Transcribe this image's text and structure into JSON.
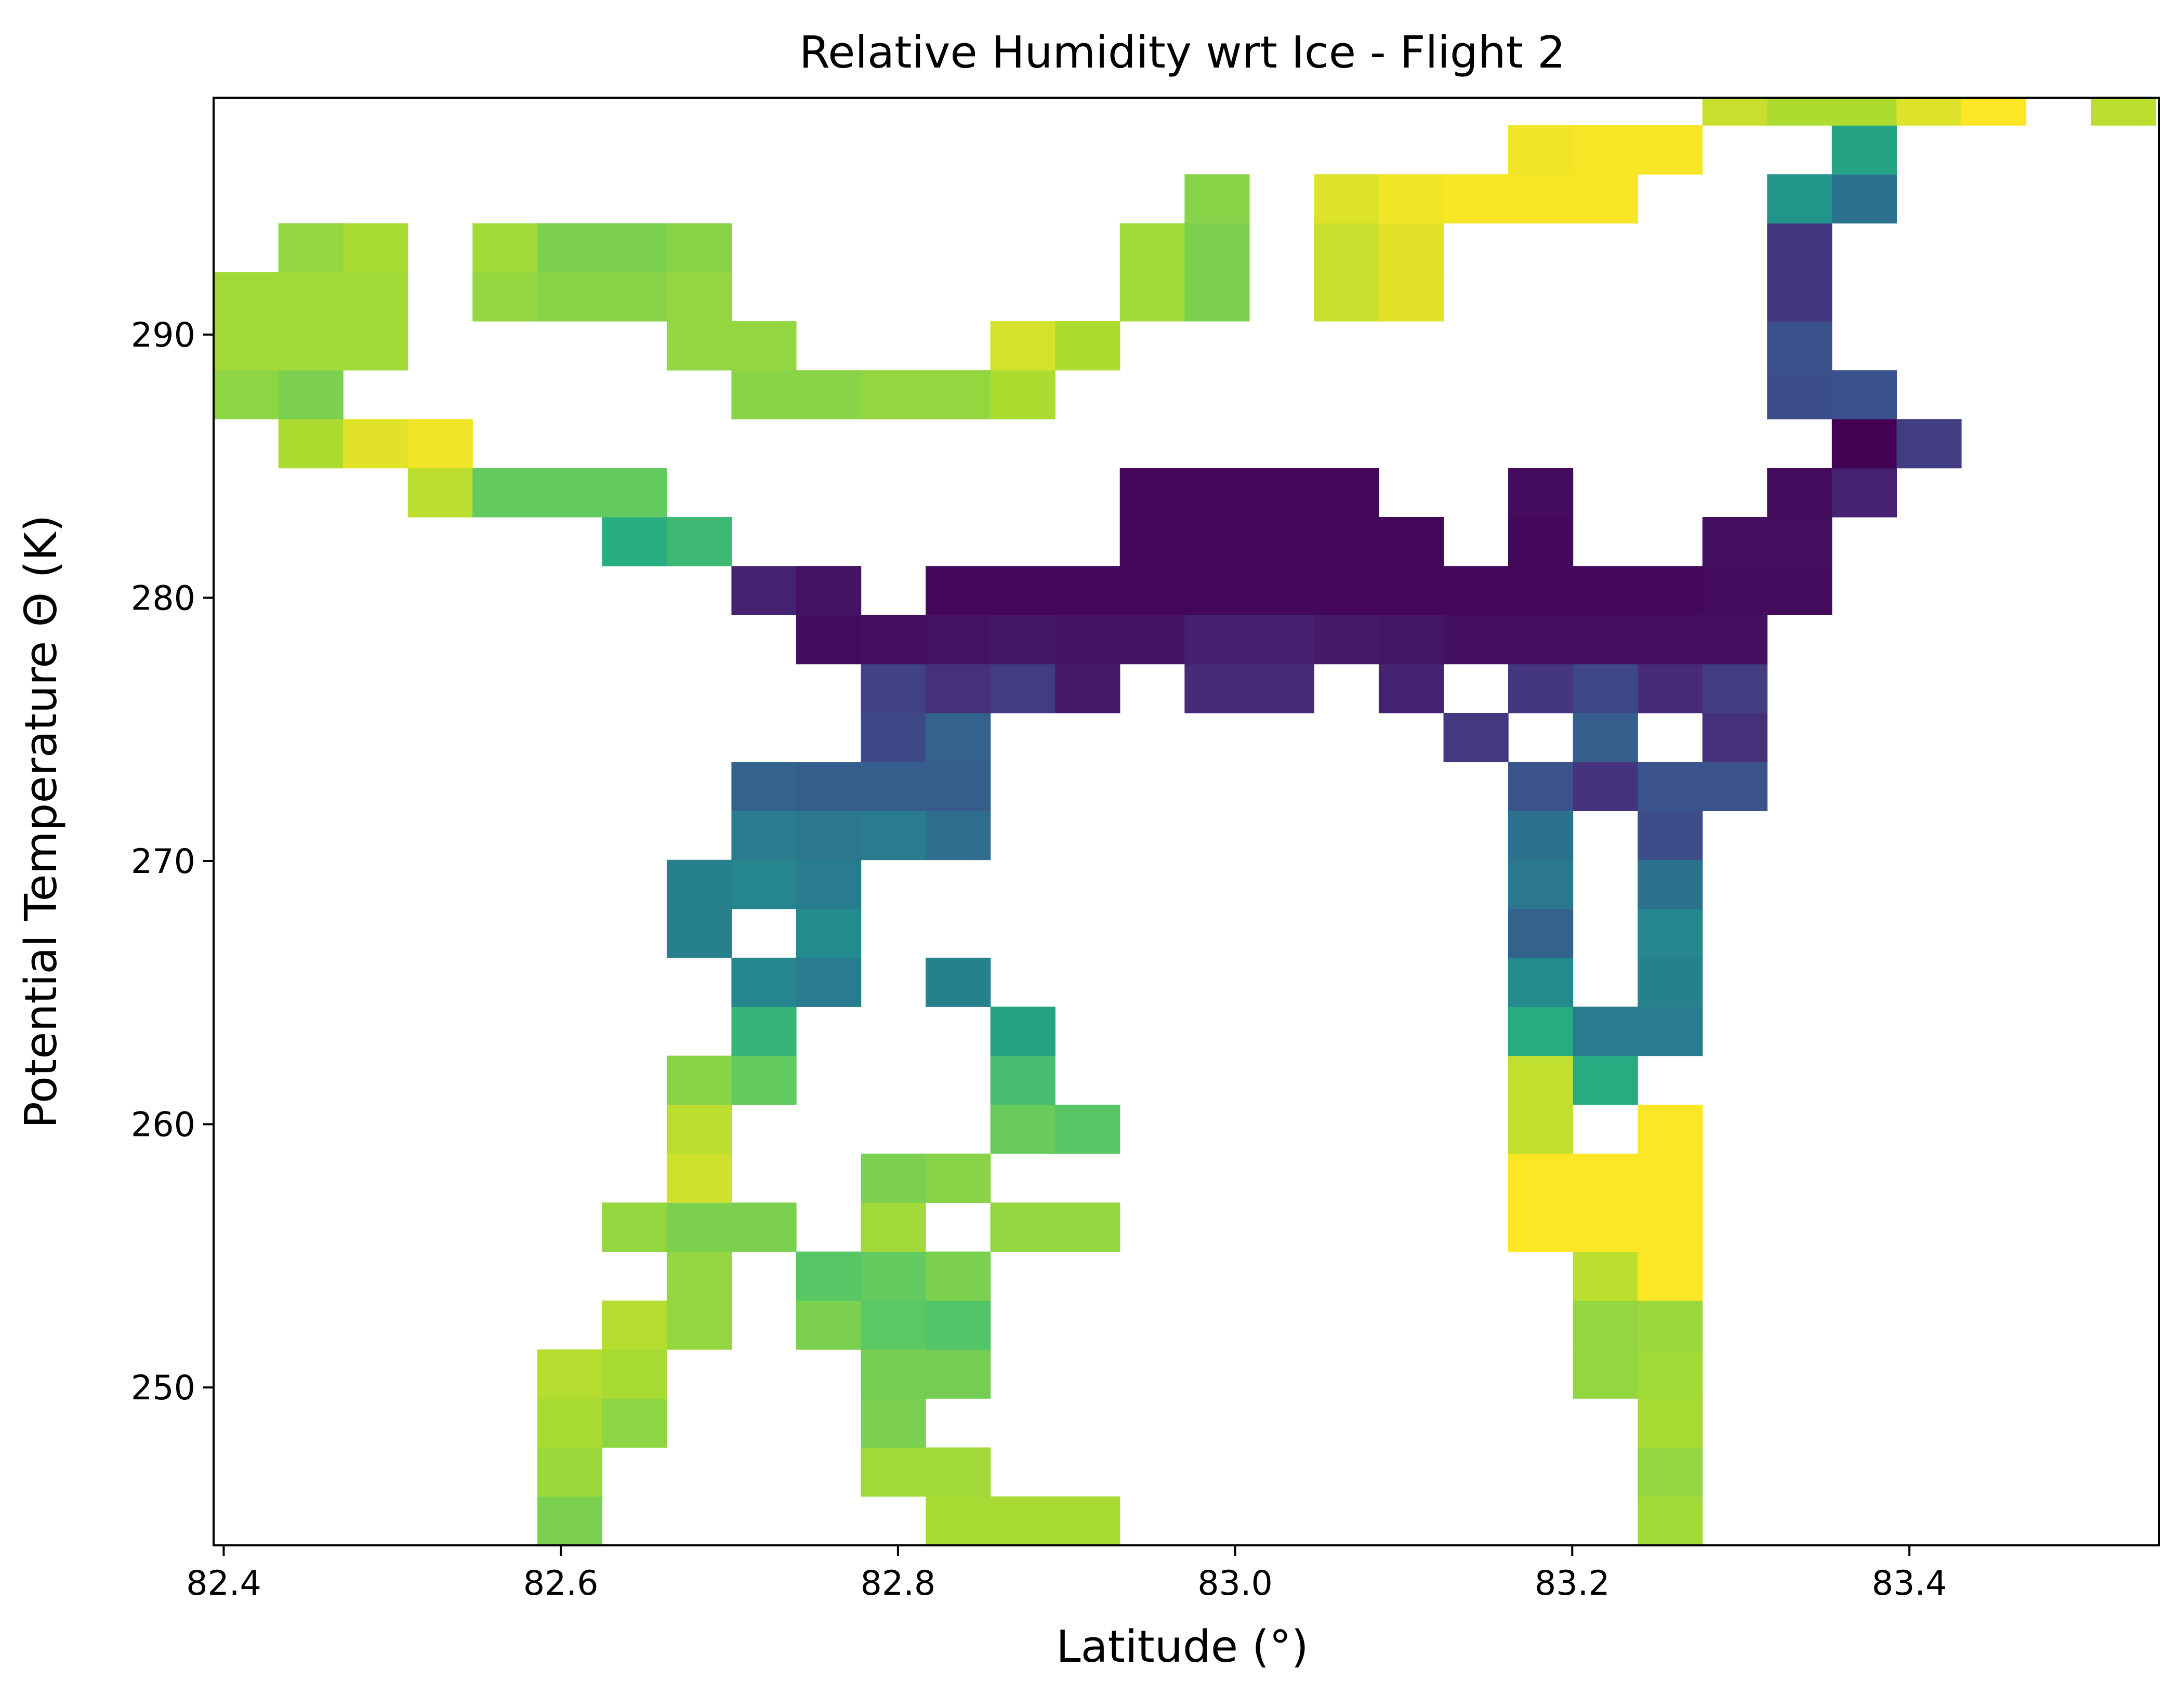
{
  "chart_data": {
    "type": "heatmap",
    "title": "Relative Humidity wrt Ice - Flight 2",
    "xlabel": "Latitude (°)",
    "ylabel": "Potential Temperature Θ (K)",
    "xlim": [
      82.394,
      83.548
    ],
    "ylim": [
      244,
      299
    ],
    "x_ticks": [
      82.4,
      82.6,
      82.8,
      83.0,
      83.2,
      83.4
    ],
    "x_tick_labels": [
      "82.4",
      "82.6",
      "82.8",
      "83.0",
      "83.2",
      "83.4"
    ],
    "y_ticks": [
      250,
      260,
      270,
      280,
      290
    ],
    "y_tick_labels": [
      "250",
      "260",
      "270",
      "280",
      "290"
    ],
    "colormap": "viridis",
    "grid": false,
    "colorbar": false,
    "lat_bins": {
      "start": 82.394,
      "step": 0.0384
    },
    "theta_bins": {
      "start": 244,
      "step": 1.8604
    },
    "values_note": "",
    "cells": [
      [
        5,
        0,
        0.8
      ],
      [
        11,
        0,
        0.87
      ],
      [
        12,
        0,
        0.87
      ],
      [
        13,
        0,
        0.87
      ],
      [
        22,
        0,
        0.86
      ],
      [
        5,
        1,
        0.85
      ],
      [
        10,
        1,
        0.86
      ],
      [
        11,
        1,
        0.86
      ],
      [
        22,
        1,
        0.84
      ],
      [
        5,
        2,
        0.87
      ],
      [
        6,
        2,
        0.83
      ],
      [
        10,
        2,
        0.8
      ],
      [
        22,
        2,
        0.87
      ],
      [
        5,
        3,
        0.89
      ],
      [
        6,
        3,
        0.87
      ],
      [
        10,
        3,
        0.79
      ],
      [
        11,
        3,
        0.79
      ],
      [
        21,
        3,
        0.84
      ],
      [
        22,
        3,
        0.86
      ],
      [
        6,
        4,
        0.89
      ],
      [
        7,
        4,
        0.84
      ],
      [
        9,
        4,
        0.8
      ],
      [
        10,
        4,
        0.75
      ],
      [
        11,
        4,
        0.73
      ],
      [
        21,
        4,
        0.84
      ],
      [
        22,
        4,
        0.85
      ],
      [
        7,
        5,
        0.84
      ],
      [
        9,
        5,
        0.74
      ],
      [
        10,
        5,
        0.76
      ],
      [
        11,
        5,
        0.8
      ],
      [
        21,
        5,
        0.9
      ],
      [
        22,
        5,
        1.0
      ],
      [
        6,
        6,
        0.84
      ],
      [
        7,
        6,
        0.8
      ],
      [
        8,
        6,
        0.8
      ],
      [
        10,
        6,
        0.86
      ],
      [
        12,
        6,
        0.84
      ],
      [
        13,
        6,
        0.84
      ],
      [
        20,
        6,
        1.0
      ],
      [
        21,
        6,
        1.0
      ],
      [
        22,
        6,
        1.0
      ],
      [
        7,
        7,
        0.93
      ],
      [
        10,
        7,
        0.8
      ],
      [
        11,
        7,
        0.82
      ],
      [
        20,
        7,
        1.0
      ],
      [
        21,
        7,
        1.0
      ],
      [
        22,
        7,
        1.0
      ],
      [
        7,
        8,
        0.9
      ],
      [
        12,
        8,
        0.77
      ],
      [
        13,
        8,
        0.74
      ],
      [
        20,
        8,
        0.91
      ],
      [
        22,
        8,
        1.0
      ],
      [
        7,
        9,
        0.82
      ],
      [
        8,
        9,
        0.76
      ],
      [
        12,
        9,
        0.7
      ],
      [
        20,
        9,
        0.91
      ],
      [
        21,
        9,
        0.62
      ],
      [
        8,
        10,
        0.66
      ],
      [
        12,
        10,
        0.58
      ],
      [
        20,
        10,
        0.62
      ],
      [
        21,
        10,
        0.42
      ],
      [
        22,
        10,
        0.42
      ],
      [
        8,
        11,
        0.46
      ],
      [
        9,
        11,
        0.42
      ],
      [
        11,
        11,
        0.44
      ],
      [
        20,
        11,
        0.48
      ],
      [
        22,
        11,
        0.44
      ],
      [
        7,
        12,
        0.44
      ],
      [
        9,
        12,
        0.48
      ],
      [
        20,
        12,
        0.32
      ],
      [
        22,
        12,
        0.46
      ],
      [
        7,
        13,
        0.44
      ],
      [
        8,
        13,
        0.46
      ],
      [
        9,
        13,
        0.42
      ],
      [
        20,
        13,
        0.4
      ],
      [
        22,
        13,
        0.38
      ],
      [
        8,
        14,
        0.42
      ],
      [
        9,
        14,
        0.4
      ],
      [
        10,
        14,
        0.42
      ],
      [
        11,
        14,
        0.36
      ],
      [
        20,
        14,
        0.38
      ],
      [
        22,
        14,
        0.24
      ],
      [
        8,
        15,
        0.32
      ],
      [
        9,
        15,
        0.3
      ],
      [
        10,
        15,
        0.3
      ],
      [
        11,
        15,
        0.3
      ],
      [
        20,
        15,
        0.26
      ],
      [
        21,
        15,
        0.15
      ],
      [
        22,
        15,
        0.26
      ],
      [
        23,
        15,
        0.26
      ],
      [
        10,
        16,
        0.22
      ],
      [
        11,
        16,
        0.32
      ],
      [
        19,
        16,
        0.17
      ],
      [
        21,
        16,
        0.3
      ],
      [
        23,
        16,
        0.14
      ],
      [
        10,
        17,
        0.2
      ],
      [
        11,
        17,
        0.14
      ],
      [
        12,
        17,
        0.18
      ],
      [
        13,
        17,
        0.07
      ],
      [
        15,
        17,
        0.12
      ],
      [
        16,
        17,
        0.12
      ],
      [
        18,
        17,
        0.1
      ],
      [
        20,
        17,
        0.16
      ],
      [
        21,
        17,
        0.22
      ],
      [
        22,
        17,
        0.12
      ],
      [
        23,
        17,
        0.18
      ],
      [
        9,
        18,
        0.03
      ],
      [
        10,
        18,
        0.04
      ],
      [
        11,
        18,
        0.05
      ],
      [
        12,
        18,
        0.06
      ],
      [
        13,
        18,
        0.05
      ],
      [
        14,
        18,
        0.05
      ],
      [
        15,
        18,
        0.09
      ],
      [
        16,
        18,
        0.09
      ],
      [
        17,
        18,
        0.07
      ],
      [
        18,
        18,
        0.06
      ],
      [
        19,
        18,
        0.04
      ],
      [
        20,
        18,
        0.04
      ],
      [
        21,
        18,
        0.04
      ],
      [
        22,
        18,
        0.04
      ],
      [
        23,
        18,
        0.04
      ],
      [
        8,
        19,
        0.1
      ],
      [
        9,
        19,
        0.05
      ],
      [
        11,
        19,
        0.02
      ],
      [
        12,
        19,
        0.02
      ],
      [
        13,
        19,
        0.02
      ],
      [
        14,
        19,
        0.02
      ],
      [
        15,
        19,
        0.02
      ],
      [
        16,
        19,
        0.02
      ],
      [
        17,
        19,
        0.02
      ],
      [
        18,
        19,
        0.02
      ],
      [
        19,
        19,
        0.02
      ],
      [
        20,
        19,
        0.02
      ],
      [
        21,
        19,
        0.02
      ],
      [
        22,
        19,
        0.02
      ],
      [
        23,
        19,
        0.03
      ],
      [
        24,
        19,
        0.03
      ],
      [
        6,
        20,
        0.63
      ],
      [
        7,
        20,
        0.68
      ],
      [
        14,
        20,
        0.02
      ],
      [
        15,
        20,
        0.02
      ],
      [
        16,
        20,
        0.02
      ],
      [
        17,
        20,
        0.02
      ],
      [
        18,
        20,
        0.02
      ],
      [
        20,
        20,
        0.02
      ],
      [
        23,
        20,
        0.04
      ],
      [
        24,
        20,
        0.04
      ],
      [
        3,
        21,
        0.9
      ],
      [
        4,
        21,
        0.76
      ],
      [
        5,
        21,
        0.76
      ],
      [
        6,
        21,
        0.76
      ],
      [
        14,
        21,
        0.02
      ],
      [
        15,
        21,
        0.02
      ],
      [
        16,
        21,
        0.02
      ],
      [
        17,
        21,
        0.02
      ],
      [
        20,
        21,
        0.03
      ],
      [
        24,
        21,
        0.03
      ],
      [
        25,
        21,
        0.1
      ],
      [
        1,
        22,
        0.88
      ],
      [
        2,
        22,
        0.96
      ],
      [
        3,
        22,
        0.98
      ],
      [
        25,
        22,
        0.0
      ],
      [
        26,
        22,
        0.18
      ],
      [
        0,
        23,
        0.83
      ],
      [
        1,
        23,
        0.8
      ],
      [
        8,
        23,
        0.82
      ],
      [
        9,
        23,
        0.82
      ],
      [
        10,
        23,
        0.84
      ],
      [
        11,
        23,
        0.84
      ],
      [
        12,
        23,
        0.88
      ],
      [
        24,
        23,
        0.24
      ],
      [
        25,
        23,
        0.25
      ],
      [
        0,
        24,
        0.86
      ],
      [
        1,
        24,
        0.86
      ],
      [
        2,
        24,
        0.86
      ],
      [
        7,
        24,
        0.84
      ],
      [
        8,
        24,
        0.84
      ],
      [
        12,
        24,
        0.94
      ],
      [
        13,
        24,
        0.88
      ],
      [
        24,
        24,
        0.25
      ],
      [
        0,
        25,
        0.86
      ],
      [
        1,
        25,
        0.86
      ],
      [
        2,
        25,
        0.86
      ],
      [
        4,
        25,
        0.84
      ],
      [
        5,
        25,
        0.82
      ],
      [
        6,
        25,
        0.82
      ],
      [
        7,
        25,
        0.84
      ],
      [
        14,
        25,
        0.86
      ],
      [
        15,
        25,
        0.8
      ],
      [
        17,
        25,
        0.92
      ],
      [
        18,
        25,
        0.96
      ],
      [
        24,
        25,
        0.16
      ],
      [
        1,
        26,
        0.84
      ],
      [
        2,
        26,
        0.87
      ],
      [
        4,
        26,
        0.86
      ],
      [
        5,
        26,
        0.8
      ],
      [
        6,
        26,
        0.8
      ],
      [
        7,
        26,
        0.82
      ],
      [
        14,
        26,
        0.86
      ],
      [
        15,
        26,
        0.8
      ],
      [
        17,
        26,
        0.92
      ],
      [
        18,
        26,
        0.96
      ],
      [
        24,
        26,
        0.16
      ],
      [
        15,
        27,
        0.82
      ],
      [
        17,
        27,
        0.95
      ],
      [
        18,
        27,
        0.98
      ],
      [
        19,
        27,
        0.99
      ],
      [
        20,
        27,
        0.99
      ],
      [
        21,
        27,
        0.99
      ],
      [
        24,
        27,
        0.52
      ],
      [
        25,
        27,
        0.38
      ],
      [
        20,
        28,
        0.98
      ],
      [
        21,
        28,
        0.99
      ],
      [
        22,
        28,
        0.99
      ],
      [
        25,
        28,
        0.58
      ],
      [
        23,
        29,
        0.92
      ],
      [
        24,
        29,
        0.88
      ],
      [
        25,
        29,
        0.88
      ],
      [
        26,
        29,
        0.95
      ],
      [
        27,
        29,
        1.0
      ],
      [
        29,
        29,
        0.9
      ],
      [
        24,
        30,
        0.9
      ],
      [
        25,
        30,
        0.86
      ],
      [
        27,
        30,
        0.82
      ],
      [
        28,
        30,
        0.82
      ],
      [
        29,
        30,
        0.82
      ],
      [
        30,
        30,
        0.82
      ],
      [
        31,
        30,
        0.82
      ],
      [
        32,
        30,
        0.7
      ]
    ]
  }
}
